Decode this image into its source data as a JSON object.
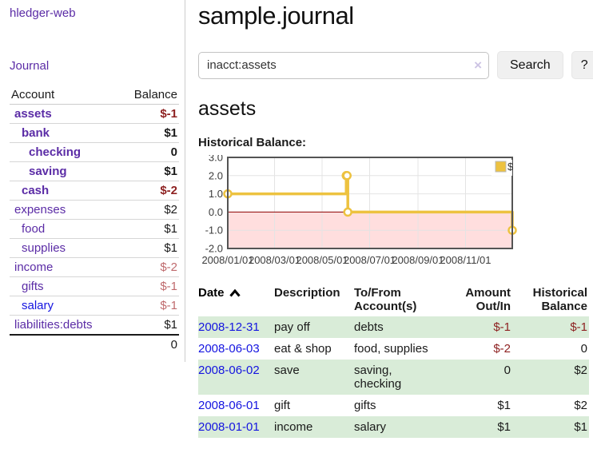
{
  "colors": {
    "link_purple": "#5b2ca6",
    "link_blue": "#1414e0",
    "negative_strong": "#8e2222",
    "negative_soft": "#bf6a6d",
    "row_shade_green": "#d9ecd8",
    "chart_series": "#edc240",
    "chart_zero_line": "#8b0000",
    "chart_below_zero_fill": "rgba(255,0,0,0.13)"
  },
  "sidebar": {
    "app_title": "hledger-web",
    "journal_link": "Journal",
    "accounts": {
      "headers": {
        "account": "Account",
        "balance": "Balance"
      },
      "rows": [
        {
          "name": "assets",
          "indent": 0,
          "bold": true,
          "link_color": "purple",
          "balance": "$-1",
          "balance_class": "neg-strong"
        },
        {
          "name": "bank",
          "indent": 1,
          "bold": true,
          "link_color": "purple",
          "balance": "$1",
          "balance_class": ""
        },
        {
          "name": "checking",
          "indent": 2,
          "bold": true,
          "link_color": "purple",
          "balance": "0",
          "balance_class": ""
        },
        {
          "name": "saving",
          "indent": 2,
          "bold": true,
          "link_color": "purple",
          "balance": "$1",
          "balance_class": ""
        },
        {
          "name": "cash",
          "indent": 1,
          "bold": true,
          "link_color": "purple",
          "balance": "$-2",
          "balance_class": "neg-strong"
        },
        {
          "name": "expenses",
          "indent": 0,
          "bold": false,
          "link_color": "purple",
          "balance": "$2",
          "balance_class": ""
        },
        {
          "name": "food",
          "indent": 1,
          "bold": false,
          "link_color": "purple",
          "balance": "$1",
          "balance_class": ""
        },
        {
          "name": "supplies",
          "indent": 1,
          "bold": false,
          "link_color": "purple",
          "balance": "$1",
          "balance_class": ""
        },
        {
          "name": "income",
          "indent": 0,
          "bold": false,
          "link_color": "purple",
          "balance": "$-2",
          "balance_class": "neg-soft"
        },
        {
          "name": "gifts",
          "indent": 1,
          "bold": false,
          "link_color": "purple",
          "balance": "$-1",
          "balance_class": "neg-soft"
        },
        {
          "name": "salary",
          "indent": 1,
          "bold": false,
          "link_color": "blue",
          "balance": "$-1",
          "balance_class": "neg-soft"
        },
        {
          "name": "liabilities:debts",
          "indent": 0,
          "bold": false,
          "link_color": "purple",
          "balance": "$1",
          "balance_class": ""
        }
      ],
      "total": "0"
    }
  },
  "main": {
    "title": "sample.journal",
    "search": {
      "value": "inacct:assets",
      "clear_icon": "×",
      "search_button": "Search",
      "help_button": "?"
    },
    "account_heading": "assets",
    "chart_label": "Historical Balance:",
    "register": {
      "headers": [
        "Date",
        "Description",
        "To/From Account(s)",
        "Amount Out/In",
        "Historical Balance"
      ],
      "rows": [
        {
          "date": "2008-12-31",
          "description": "pay off",
          "accounts": "debts",
          "amount": "$-1",
          "amount_neg": true,
          "balance": "$-1",
          "balance_neg": true,
          "shaded": true
        },
        {
          "date": "2008-06-03",
          "description": "eat & shop",
          "accounts": "food, supplies",
          "amount": "$-2",
          "amount_neg": true,
          "balance": "0",
          "balance_neg": false,
          "shaded": false
        },
        {
          "date": "2008-06-02",
          "description": "save",
          "accounts": "saving, checking",
          "amount": "0",
          "amount_neg": false,
          "balance": "$2",
          "balance_neg": false,
          "shaded": true
        },
        {
          "date": "2008-06-01",
          "description": "gift",
          "accounts": "gifts",
          "amount": "$1",
          "amount_neg": false,
          "balance": "$2",
          "balance_neg": false,
          "shaded": false
        },
        {
          "date": "2008-01-01",
          "description": "income",
          "accounts": "salary",
          "amount": "$1",
          "amount_neg": false,
          "balance": "$1",
          "balance_neg": false,
          "shaded": true
        }
      ]
    }
  },
  "chart_data": {
    "type": "line",
    "subtype": "step-after with markers",
    "title": "Historical Balance:",
    "series": [
      {
        "name": "$",
        "color": "#edc240",
        "points": [
          [
            "2008-01-01",
            1
          ],
          [
            "2008-06-01",
            2
          ],
          [
            "2008-06-02",
            2
          ],
          [
            "2008-06-03",
            0
          ],
          [
            "2008-12-31",
            -1
          ]
        ]
      }
    ],
    "xlim": [
      "2008-01-01",
      "2008-12-31"
    ],
    "ylim": [
      -2,
      3
    ],
    "x_ticks": [
      "2008/01/01",
      "2008/03/01",
      "2008/05/01",
      "2008/07/01",
      "2008/09/01",
      "2008/11/01"
    ],
    "y_ticks": [
      "3.0",
      "2.0",
      "1.0",
      "0.0",
      "-1.0",
      "-2.0"
    ],
    "grid": true,
    "legend_position": "top-right",
    "zero_line_color": "#8b0000",
    "below_zero_fill": "rgba(255,0,0,0.13)",
    "border_color": "#545454"
  }
}
